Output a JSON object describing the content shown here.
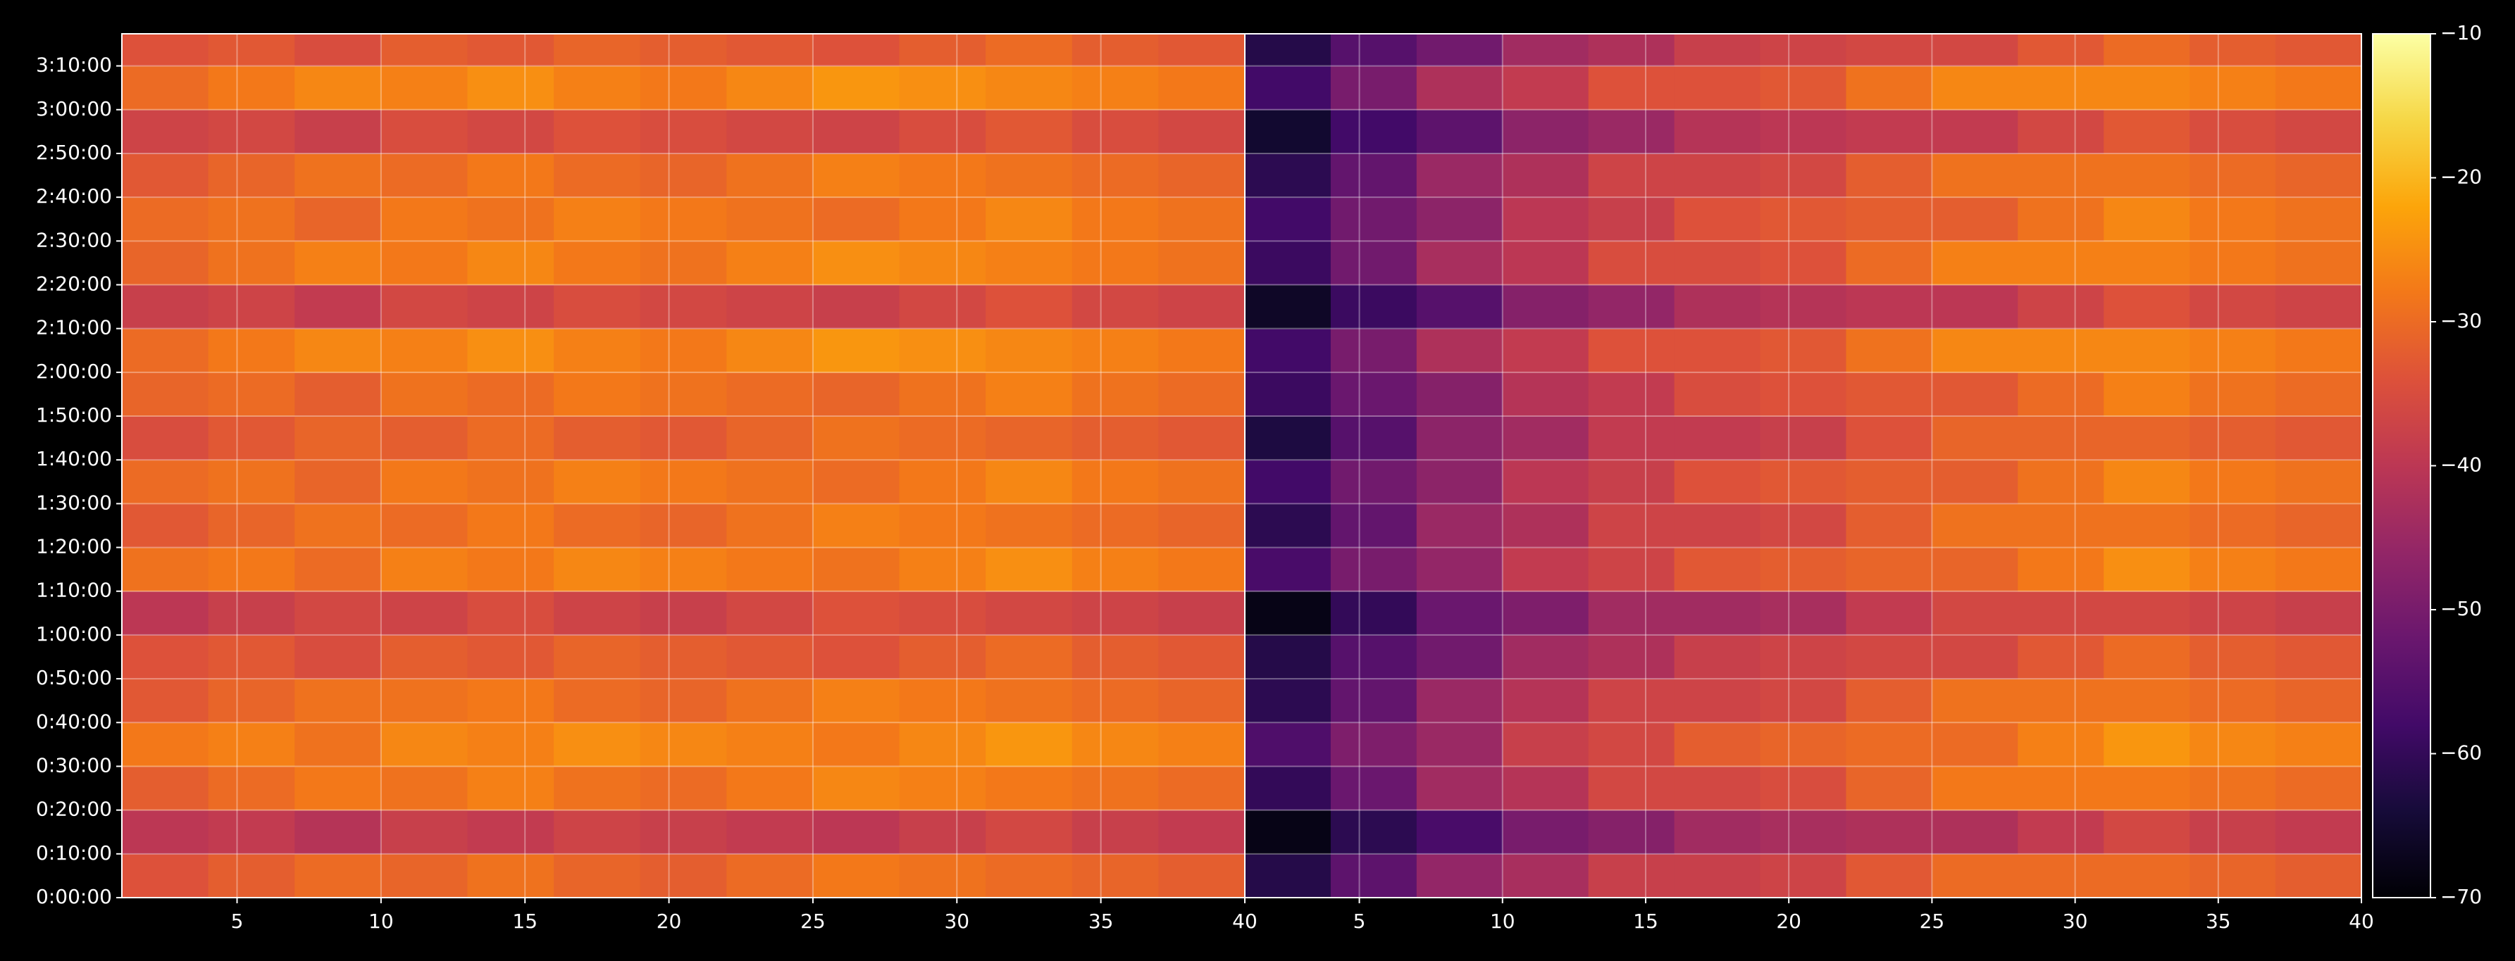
{
  "chart_data": {
    "type": "heatmap",
    "colormap": "inferno",
    "grid": true,
    "ylim": [
      0,
      11840
    ],
    "yticks": [
      {
        "value": 0,
        "label": "0:00:00"
      },
      {
        "value": 600,
        "label": "0:10:00"
      },
      {
        "value": 1200,
        "label": "0:20:00"
      },
      {
        "value": 1800,
        "label": "0:30:00"
      },
      {
        "value": 2400,
        "label": "0:40:00"
      },
      {
        "value": 3000,
        "label": "0:50:00"
      },
      {
        "value": 3600,
        "label": "1:00:00"
      },
      {
        "value": 4200,
        "label": "1:10:00"
      },
      {
        "value": 4800,
        "label": "1:20:00"
      },
      {
        "value": 5400,
        "label": "1:30:00"
      },
      {
        "value": 6000,
        "label": "1:40:00"
      },
      {
        "value": 6600,
        "label": "1:50:00"
      },
      {
        "value": 7200,
        "label": "2:00:00"
      },
      {
        "value": 7800,
        "label": "2:10:00"
      },
      {
        "value": 8400,
        "label": "2:20:00"
      },
      {
        "value": 9000,
        "label": "2:30:00"
      },
      {
        "value": 9600,
        "label": "2:40:00"
      },
      {
        "value": 10200,
        "label": "2:50:00"
      },
      {
        "value": 10800,
        "label": "3:00:00"
      },
      {
        "value": 11400,
        "label": "3:10:00"
      }
    ],
    "ybins": [
      0,
      600,
      1200,
      1800,
      2400,
      3000,
      3600,
      4200,
      4800,
      5400,
      6000,
      6600,
      7200,
      7800,
      8400,
      9000,
      9600,
      10200,
      10800,
      11400,
      12000
    ],
    "colorbar": {
      "lim": [
        -70,
        -10
      ],
      "ticks": [
        {
          "value": -70,
          "label": "−70"
        },
        {
          "value": -60,
          "label": "−60"
        },
        {
          "value": -50,
          "label": "−50"
        },
        {
          "value": -40,
          "label": "−40"
        },
        {
          "value": -30,
          "label": "−30"
        },
        {
          "value": -20,
          "label": "−20"
        },
        {
          "value": -10,
          "label": "−10"
        }
      ]
    },
    "panels": [
      {
        "xlim": [
          1,
          40
        ],
        "xticks": [
          5,
          10,
          15,
          20,
          25,
          30,
          35,
          40
        ],
        "xbins": [
          1,
          4,
          7,
          10,
          13,
          16,
          19,
          22,
          25,
          28,
          31,
          34,
          37,
          40
        ],
        "z": [
          [
            -34,
            -32,
            -30,
            -31,
            -29,
            -31,
            -32,
            -30,
            -28,
            -29,
            -30,
            -31,
            -32
          ],
          [
            -40,
            -39,
            -41,
            -38,
            -39,
            -37,
            -38,
            -39,
            -40,
            -38,
            -36,
            -38,
            -39
          ],
          [
            -32,
            -30,
            -28,
            -29,
            -27,
            -29,
            -30,
            -28,
            -26,
            -27,
            -28,
            -29,
            -30
          ],
          [
            -28,
            -27,
            -29,
            -26,
            -27,
            -25,
            -26,
            -27,
            -28,
            -26,
            -24,
            -26,
            -27
          ],
          [
            -33,
            -31,
            -29,
            -29,
            -28,
            -30,
            -31,
            -29,
            -27,
            -28,
            -29,
            -30,
            -31
          ],
          [
            -34,
            -33,
            -35,
            -32,
            -33,
            -31,
            -32,
            -33,
            -34,
            -32,
            -30,
            -32,
            -33
          ],
          [
            -40,
            -38,
            -36,
            -37,
            -35,
            -37,
            -38,
            -36,
            -34,
            -35,
            -36,
            -37,
            -38
          ],
          [
            -29,
            -28,
            -30,
            -27,
            -28,
            -26,
            -27,
            -28,
            -29,
            -27,
            -25,
            -27,
            -28
          ],
          [
            -33,
            -31,
            -29,
            -30,
            -28,
            -30,
            -31,
            -29,
            -27,
            -28,
            -29,
            -30,
            -31
          ],
          [
            -30,
            -29,
            -31,
            -28,
            -29,
            -27,
            -28,
            -29,
            -30,
            -28,
            -26,
            -28,
            -29
          ],
          [
            -35,
            -33,
            -31,
            -32,
            -30,
            -32,
            -33,
            -31,
            -29,
            -30,
            -31,
            -32,
            -33
          ],
          [
            -31,
            -30,
            -32,
            -29,
            -30,
            -28,
            -29,
            -30,
            -31,
            -29,
            -27,
            -29,
            -30
          ],
          [
            -30,
            -28,
            -26,
            -27,
            -25,
            -27,
            -28,
            -26,
            -24,
            -25,
            -26,
            -27,
            -28
          ],
          [
            -38,
            -37,
            -39,
            -36,
            -37,
            -35,
            -36,
            -37,
            -38,
            -36,
            -34,
            -36,
            -37
          ],
          [
            -31,
            -29,
            -27,
            -28,
            -26,
            -28,
            -29,
            -27,
            -25,
            -26,
            -27,
            -28,
            -29
          ],
          [
            -30,
            -29,
            -31,
            -28,
            -29,
            -27,
            -28,
            -29,
            -30,
            -28,
            -26,
            -28,
            -29
          ],
          [
            -33,
            -31,
            -29,
            -30,
            -28,
            -30,
            -31,
            -29,
            -27,
            -28,
            -29,
            -30,
            -31
          ],
          [
            -37,
            -36,
            -38,
            -35,
            -36,
            -34,
            -35,
            -36,
            -37,
            -35,
            -33,
            -35,
            -36
          ],
          [
            -30,
            -28,
            -26,
            -27,
            -25,
            -27,
            -28,
            -26,
            -24,
            -25,
            -26,
            -27,
            -28
          ],
          [
            -34,
            -33,
            -35,
            -32,
            -33,
            -31,
            -32,
            -33,
            -34,
            -32,
            -30,
            -32,
            -33
          ]
        ]
      },
      {
        "xlim": [
          1,
          40
        ],
        "xticks": [
          5,
          10,
          15,
          20,
          25,
          30,
          35,
          40
        ],
        "xbins": [
          1,
          4,
          7,
          10,
          13,
          16,
          19,
          22,
          25,
          28,
          31,
          34,
          37,
          40
        ],
        "z": [
          [
            -62,
            -54,
            -46,
            -43,
            -38,
            -38,
            -37,
            -33,
            -30,
            -30,
            -30,
            -31,
            -32
          ],
          [
            -68,
            -61,
            -57,
            -50,
            -48,
            -44,
            -43,
            -42,
            -42,
            -39,
            -36,
            -38,
            -39
          ],
          [
            -60,
            -52,
            -44,
            -41,
            -36,
            -36,
            -35,
            -31,
            -28,
            -28,
            -28,
            -29,
            -30
          ],
          [
            -56,
            -49,
            -45,
            -38,
            -36,
            -32,
            -31,
            -30,
            -30,
            -27,
            -24,
            -26,
            -27
          ],
          [
            -61,
            -53,
            -45,
            -41,
            -37,
            -37,
            -36,
            -32,
            -29,
            -29,
            -29,
            -30,
            -31
          ],
          [
            -62,
            -55,
            -51,
            -44,
            -42,
            -38,
            -37,
            -36,
            -36,
            -33,
            -30,
            -32,
            -33
          ],
          [
            -68,
            -60,
            -52,
            -49,
            -44,
            -44,
            -43,
            -39,
            -36,
            -36,
            -36,
            -37,
            -38
          ],
          [
            -57,
            -50,
            -46,
            -39,
            -37,
            -33,
            -32,
            -31,
            -31,
            -28,
            -25,
            -27,
            -28
          ],
          [
            -61,
            -53,
            -45,
            -42,
            -37,
            -37,
            -36,
            -32,
            -29,
            -29,
            -29,
            -30,
            -31
          ],
          [
            -58,
            -51,
            -47,
            -40,
            -38,
            -34,
            -33,
            -32,
            -32,
            -29,
            -26,
            -28,
            -29
          ],
          [
            -63,
            -55,
            -47,
            -44,
            -39,
            -39,
            -38,
            -34,
            -31,
            -31,
            -31,
            -32,
            -33
          ],
          [
            -59,
            -52,
            -48,
            -41,
            -39,
            -35,
            -34,
            -33,
            -33,
            -30,
            -27,
            -29,
            -30
          ],
          [
            -58,
            -50,
            -42,
            -39,
            -34,
            -34,
            -33,
            -29,
            -26,
            -26,
            -26,
            -27,
            -28
          ],
          [
            -66,
            -59,
            -55,
            -48,
            -46,
            -42,
            -41,
            -40,
            -40,
            -37,
            -34,
            -36,
            -37
          ],
          [
            -59,
            -51,
            -43,
            -40,
            -35,
            -35,
            -34,
            -30,
            -27,
            -27,
            -27,
            -28,
            -29
          ],
          [
            -58,
            -51,
            -47,
            -40,
            -38,
            -34,
            -33,
            -32,
            -32,
            -29,
            -26,
            -28,
            -29
          ],
          [
            -61,
            -53,
            -45,
            -42,
            -37,
            -37,
            -36,
            -32,
            -29,
            -29,
            -29,
            -30,
            -31
          ],
          [
            -65,
            -58,
            -54,
            -47,
            -45,
            -41,
            -40,
            -39,
            -39,
            -36,
            -33,
            -35,
            -36
          ],
          [
            -58,
            -50,
            -42,
            -39,
            -34,
            -34,
            -33,
            -29,
            -26,
            -26,
            -26,
            -27,
            -28
          ],
          [
            -62,
            -55,
            -51,
            -44,
            -42,
            -38,
            -37,
            -36,
            -36,
            -33,
            -30,
            -32,
            -33
          ]
        ]
      }
    ]
  }
}
